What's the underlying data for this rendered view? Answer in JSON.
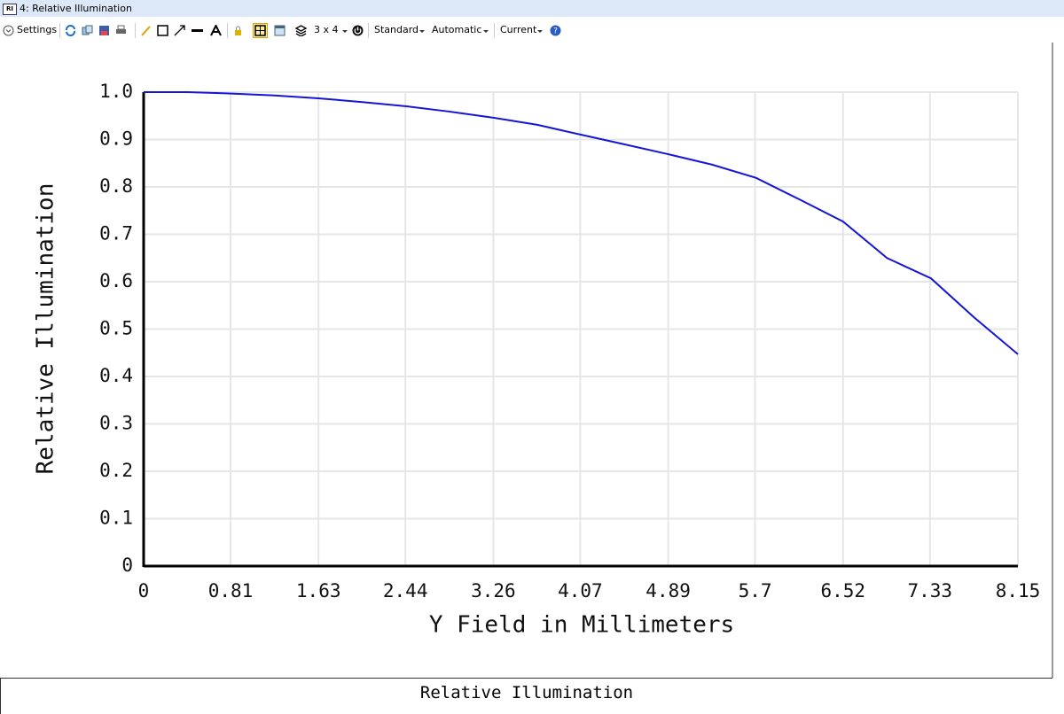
{
  "window": {
    "icon": "RI",
    "title": "4: Relative Illumination"
  },
  "toolbar": {
    "settings": "Settings",
    "layout": "3 x 4",
    "standard": "Standard",
    "automatic": "Automatic",
    "current": "Current"
  },
  "chart_data": {
    "type": "line",
    "xlabel": "Y Field in Millimeters",
    "ylabel": "Relative Illumination",
    "x": [
      0,
      0.41,
      0.82,
      1.22,
      1.63,
      2.04,
      2.45,
      2.85,
      3.26,
      3.67,
      4.08,
      4.48,
      4.89,
      5.3,
      5.71,
      6.11,
      6.52,
      6.93,
      7.34,
      7.74,
      8.15
    ],
    "values": [
      1.0,
      1.0,
      0.997,
      0.993,
      0.987,
      0.979,
      0.97,
      0.959,
      0.946,
      0.931,
      0.91,
      0.89,
      0.869,
      0.847,
      0.819,
      0.774,
      0.727,
      0.65,
      0.607,
      0.525,
      0.447
    ],
    "color": "#1515d6",
    "xlim": [
      0,
      8.15
    ],
    "ylim": [
      0,
      1
    ],
    "xticks": [
      0,
      0.81,
      1.63,
      2.44,
      3.26,
      4.07,
      4.89,
      5.7,
      6.52,
      7.33,
      8.15
    ],
    "yticks": [
      0,
      0.1,
      0.2,
      0.3,
      0.4,
      0.5,
      0.6,
      0.7,
      0.8,
      0.9,
      {
        "value": 1,
        "label": "1.0"
      }
    ],
    "grid": true
  },
  "footer": {
    "title": "Relative Illumination"
  }
}
